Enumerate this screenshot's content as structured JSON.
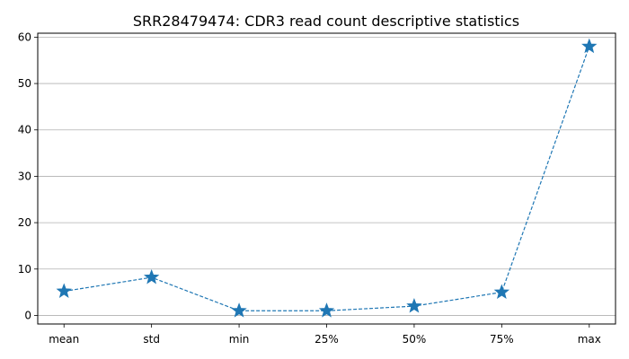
{
  "chart_data": {
    "type": "line",
    "title": "SRR28479474: CDR3 read count descriptive statistics",
    "xlabel": "",
    "ylabel": "",
    "categories": [
      "mean",
      "std",
      "min",
      "25%",
      "50%",
      "75%",
      "max"
    ],
    "series": [
      {
        "values": [
          5.2,
          8.2,
          1.0,
          1.0,
          2.0,
          5.0,
          58.0
        ]
      }
    ],
    "ylim": [
      -1.85,
      60.85
    ],
    "yticks": [
      0,
      10,
      20,
      30,
      40,
      50,
      60
    ],
    "grid": "y",
    "line_style": "dashed",
    "marker": "star",
    "colors": {
      "series": "#1f77b4",
      "grid": "#b0b0b0",
      "axis": "#000000"
    }
  }
}
